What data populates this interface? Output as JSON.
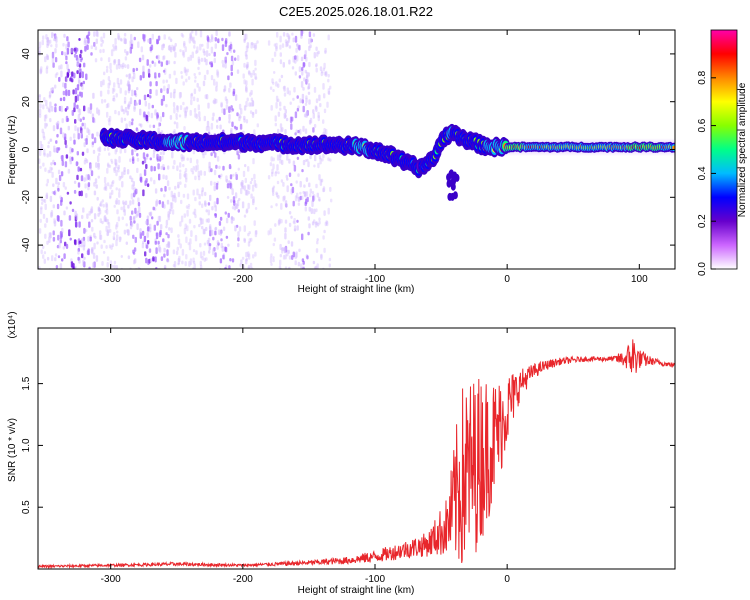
{
  "title": "C2E5.2025.026.18.01.R22",
  "chart_data": [
    {
      "type": "heatmap",
      "xlabel": "Height of straight line (km)",
      "ylabel": "Frequency (Hz)",
      "xlim": [
        -355,
        127
      ],
      "ylim": [
        -50,
        50
      ],
      "xticks": [
        "-300",
        "-200",
        "-100",
        "0",
        "100"
      ],
      "yticks": [
        "-40",
        "-20",
        "0",
        "20",
        "40"
      ],
      "colorbar": {
        "label": "Normalized spectral amplitude",
        "range": [
          0,
          1
        ],
        "ticks": [
          "0.0",
          "0.2",
          "0.4",
          "0.6",
          "0.8"
        ],
        "colors": [
          "#ffffff",
          "#cc66ff",
          "#6600cc",
          "#0000ff",
          "#00bbff",
          "#00ff88",
          "#88ff00",
          "#ffff00",
          "#ff8800",
          "#ff0000",
          "#ff00aa"
        ]
      },
      "ridge": {
        "x": [
          -305,
          -280,
          -250,
          -220,
          -190,
          -160,
          -130,
          -110,
          -90,
          -75,
          -65,
          -55,
          -48,
          -42,
          -38,
          -30,
          -20,
          -10,
          0,
          20,
          60,
          100,
          127
        ],
        "freq": [
          5,
          4,
          3,
          3,
          3,
          2,
          2,
          1,
          -2,
          -6,
          -8,
          -3,
          5,
          7,
          6,
          4,
          2,
          1,
          1,
          1,
          1,
          1,
          1
        ],
        "peak_amplitude": [
          0.55,
          0.6,
          0.65,
          0.6,
          0.55,
          0.55,
          0.6,
          0.65,
          0.6,
          0.5,
          0.45,
          0.55,
          0.6,
          0.65,
          0.6,
          0.55,
          0.6,
          0.7,
          0.85,
          0.8,
          0.7,
          0.85,
          0.8
        ]
      },
      "noise_band": {
        "x": [
          -355,
          -130
        ],
        "amplitude": 0.1
      }
    },
    {
      "type": "line",
      "xlabel": "Height of straight line (km)",
      "ylabel": "SNR (10 * v/v)",
      "scale_note": "(x10⁴)",
      "xlim": [
        -355,
        127
      ],
      "ylim": [
        0,
        1.95
      ],
      "xticks": [
        "-300",
        "-200",
        "-100",
        "0"
      ],
      "yticks": [
        "0.5",
        "1.0",
        "1.5"
      ],
      "color": "#e8262b",
      "x": [
        -355,
        -300,
        -250,
        -200,
        -150,
        -120,
        -100,
        -80,
        -60,
        -45,
        -38,
        -33,
        -28,
        -20,
        -10,
        -5,
        0,
        10,
        20,
        30,
        40,
        60,
        80,
        90,
        95,
        100,
        110,
        120,
        127
      ],
      "y": [
        0.02,
        0.03,
        0.04,
        0.03,
        0.05,
        0.07,
        0.1,
        0.15,
        0.2,
        0.35,
        0.6,
        0.75,
        0.8,
        0.9,
        1.05,
        1.15,
        1.3,
        1.5,
        1.6,
        1.65,
        1.68,
        1.7,
        1.7,
        1.7,
        1.72,
        1.7,
        1.68,
        1.66,
        1.65
      ],
      "amp": [
        0.01,
        0.01,
        0.015,
        0.01,
        0.02,
        0.03,
        0.05,
        0.07,
        0.1,
        0.25,
        0.6,
        0.8,
        0.75,
        0.7,
        0.5,
        0.4,
        0.3,
        0.12,
        0.06,
        0.04,
        0.03,
        0.02,
        0.02,
        0.08,
        0.2,
        0.08,
        0.03,
        0.02,
        0.02
      ]
    }
  ]
}
